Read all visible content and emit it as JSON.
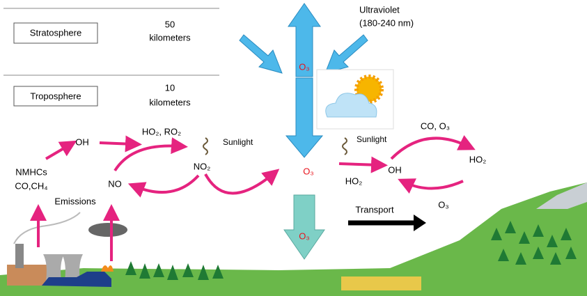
{
  "layers": {
    "stratosphere": {
      "label": "Stratosphere",
      "height_value": "50",
      "height_unit": "kilometers"
    },
    "troposphere": {
      "label": "Troposphere",
      "height_value": "10",
      "height_unit": "kilometers"
    }
  },
  "labels": {
    "ultraviolet": "Ultraviolet",
    "wavelength": "(180-240 nm)",
    "o3_strat": "O₃",
    "o3_mid": "O₃",
    "o3_deposition": "O₃",
    "oh_left": "OH",
    "ho2_ro2": "HO₂, RO₂",
    "sunlight_left": "Sunlight",
    "no2": "NO₂",
    "nmhcs": "NMHCs",
    "co_ch4": "CO,CH₄",
    "no": "NO",
    "emissions": "Emissions",
    "sunlight_right": "Sunlight",
    "co_o3": "CO, O₃",
    "oh_right": "OH",
    "ho2_right": "HO₂",
    "ho2_input": "HO₂",
    "o3_right": "O₃",
    "transport": "Transport"
  }
}
